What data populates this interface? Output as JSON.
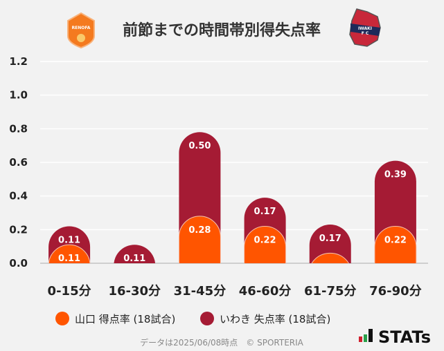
{
  "title": "前節までの時間帯別得失点率",
  "logos": {
    "home": "RENOFA",
    "away": "IWAKI FC"
  },
  "chart_data": {
    "type": "bar",
    "stacked": true,
    "categories": [
      "0-15分",
      "16-30分",
      "31-45分",
      "46-60分",
      "61-75分",
      "76-90分"
    ],
    "series": [
      {
        "name": "山口 得点率 (18試合)",
        "color": "#ff5500",
        "values": [
          0.11,
          0,
          0.28,
          0.22,
          0.06,
          0.22
        ],
        "show_labels": [
          true,
          false,
          true,
          true,
          false,
          true
        ]
      },
      {
        "name": "いわき 失点率 (18試合)",
        "color": "#a51b34",
        "values": [
          0.11,
          0.11,
          0.5,
          0.17,
          0.17,
          0.39
        ],
        "show_labels": [
          true,
          true,
          true,
          true,
          true,
          true
        ]
      }
    ],
    "ylim": [
      0,
      1.2
    ],
    "yticks": [
      "0.0",
      "0.2",
      "0.4",
      "0.6",
      "0.8",
      "1.0",
      "1.2"
    ],
    "grid": true,
    "legend": "bottom"
  },
  "footer": {
    "note": "データは2025/06/08時点　© SPORTERIA",
    "brand": "STATs"
  }
}
